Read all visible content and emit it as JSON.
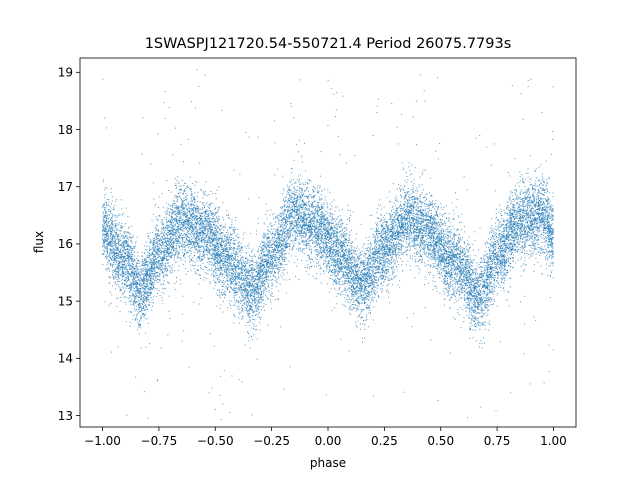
{
  "chart_data": {
    "type": "scatter",
    "title": "1SWASPJ121720.54-550721.4 Period 26075.7793s",
    "xlabel": "phase",
    "ylabel": "flux",
    "xlim": [
      -1.1,
      1.1
    ],
    "ylim": [
      12.8,
      19.25
    ],
    "xticks": [
      -1.0,
      -0.75,
      -0.5,
      -0.25,
      0.0,
      0.25,
      0.5,
      0.75,
      1.0
    ],
    "xtick_labels": [
      "−1.00",
      "−0.75",
      "−0.50",
      "−0.25",
      "0.00",
      "0.25",
      "0.50",
      "0.75",
      "1.00"
    ],
    "yticks": [
      13,
      14,
      15,
      16,
      17,
      18,
      19
    ],
    "ytick_labels": [
      "13",
      "14",
      "15",
      "16",
      "17",
      "18",
      "19"
    ],
    "grid": false,
    "legend": "none",
    "marker_color": "#1f77b4",
    "series": [
      {
        "x_range": [
          -1.0,
          1.0
        ],
        "trend": {
          "x": [
            -1.0,
            -0.9,
            -0.83,
            -0.75,
            -0.65,
            -0.55,
            -0.45,
            -0.33,
            -0.25,
            -0.15,
            -0.05,
            0.05,
            0.15,
            0.25,
            0.35,
            0.45,
            0.55,
            0.67,
            0.75,
            0.85,
            0.95,
            1.0
          ],
          "y": [
            16.2,
            15.7,
            15.2,
            15.8,
            16.4,
            16.2,
            15.7,
            15.2,
            15.8,
            16.5,
            16.3,
            15.8,
            15.3,
            15.9,
            16.4,
            16.2,
            15.7,
            15.1,
            15.8,
            16.4,
            16.5,
            16.2
          ]
        },
        "scatter_sd": 0.33,
        "n_points": 16000
      }
    ]
  }
}
